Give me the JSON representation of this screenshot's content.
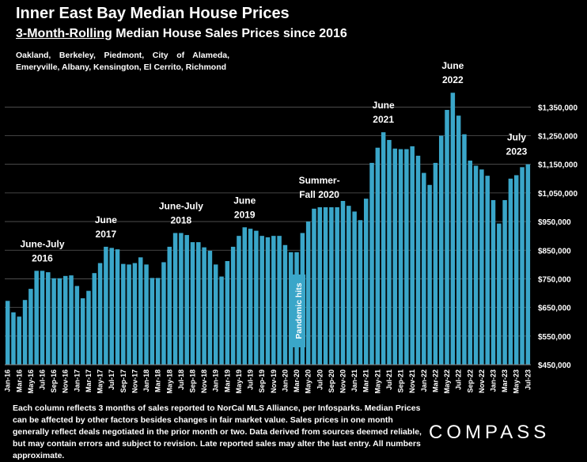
{
  "title": "Inner East Bay Median House Prices",
  "subtitle_underlined": "3-Month-Rolling",
  "subtitle_rest": " Median House Sales Prices since 2016",
  "region_line1": "Oakland, Berkeley, Piedmont, City of Alameda,",
  "region_line2": "Emeryville, Albany, Kensington, El Cerrito, Richmond",
  "footer_text": "Each column reflects 3 months of sales reported to NorCal MLS Alliance, per Infosparks. Median Prices can be affected by other factors besides changes in fair market value. Sales prices in one month generally reflect deals negotiated in the prior month or two. Data derived from sources deemed reliable, but may contain errors and subject to revision. Late reported sales may alter the last entry. All numbers approximate.",
  "logo": "COMPASS",
  "colors": {
    "bar": "#3aa6c9",
    "background": "#000000",
    "text": "#ffffff",
    "grid": "#ffffff"
  },
  "chart_data": {
    "type": "bar",
    "x": [
      "Jan-16",
      "Feb-16",
      "Mar-16",
      "Apr-16",
      "May-16",
      "Jun-16",
      "Jul-16",
      "Aug-16",
      "Sep-16",
      "Oct-16",
      "Nov-16",
      "Dec-16",
      "Jan-17",
      "Feb-17",
      "Mar-17",
      "Apr-17",
      "May-17",
      "Jun-17",
      "Jul-17",
      "Aug-17",
      "Sep-17",
      "Oct-17",
      "Nov-17",
      "Dec-17",
      "Jan-18",
      "Feb-18",
      "Mar-18",
      "Apr-18",
      "May-18",
      "Jun-18",
      "Jul-18",
      "Aug-18",
      "Sep-18",
      "Oct-18",
      "Nov-18",
      "Dec-18",
      "Jan-19",
      "Feb-19",
      "Mar-19",
      "Apr-19",
      "May-19",
      "Jun-19",
      "Jul-19",
      "Aug-19",
      "Sep-19",
      "Oct-19",
      "Nov-19",
      "Dec-19",
      "Jan-20",
      "Feb-20",
      "Mar-20",
      "Apr-20",
      "May-20",
      "Jun-20",
      "Jul-20",
      "Aug-20",
      "Sep-20",
      "Oct-20",
      "Nov-20",
      "Dec-20",
      "Jan-21",
      "Feb-21",
      "Mar-21",
      "Apr-21",
      "May-21",
      "Jun-21",
      "Jul-21",
      "Aug-21",
      "Sep-21",
      "Oct-21",
      "Nov-21",
      "Dec-21",
      "Jan-22",
      "Feb-22",
      "Mar-22",
      "Apr-22",
      "May-22",
      "Jun-22",
      "Jul-22",
      "Aug-22",
      "Sep-22",
      "Oct-22",
      "Nov-22",
      "Dec-22",
      "Jan-23",
      "Feb-23",
      "Mar-23",
      "Apr-23",
      "May-23",
      "Jun-23",
      "Jul-23"
    ],
    "x_tick_labels": [
      "Jan-16",
      "Mar-16",
      "May-16",
      "Jul-16",
      "Sep-16",
      "Nov-16",
      "Jan-17",
      "Mar-17",
      "May-17",
      "Jul-17",
      "Sep-17",
      "Nov-17",
      "Jan-18",
      "Mar-18",
      "May-18",
      "Jul-18",
      "Sep-18",
      "Nov-18",
      "Jan-19",
      "Mar-19",
      "May-19",
      "Jul-19",
      "Sep-19",
      "Nov-19",
      "Jan-20",
      "Mar-20",
      "May-20",
      "Jul-20",
      "Sep-20",
      "Nov-20",
      "Jan-21",
      "Mar-21",
      "May-21",
      "Jul-21",
      "Sep-21",
      "Nov-21",
      "Jan-22",
      "Mar-22",
      "May-22",
      "Jul-22",
      "Sep-22",
      "Nov-22",
      "Jan-23",
      "Mar-23",
      "May-23",
      "Jul-23"
    ],
    "values": [
      673000,
      633000,
      618000,
      676000,
      715000,
      778000,
      778000,
      773000,
      752000,
      752000,
      760000,
      762000,
      725000,
      682000,
      708000,
      770000,
      805000,
      862000,
      858000,
      853000,
      802000,
      800000,
      805000,
      825000,
      800000,
      753000,
      753000,
      808000,
      862000,
      910000,
      910000,
      903000,
      878000,
      878000,
      860000,
      848000,
      800000,
      758000,
      812000,
      862000,
      900000,
      930000,
      925000,
      918000,
      900000,
      895000,
      900000,
      900000,
      868000,
      843000,
      843000,
      910000,
      950000,
      995000,
      1000000,
      1000000,
      1000000,
      1000000,
      1022000,
      1005000,
      985000,
      955000,
      1030000,
      1155000,
      1208000,
      1262000,
      1235000,
      1205000,
      1203000,
      1203000,
      1213000,
      1180000,
      1120000,
      1078000,
      1155000,
      1250000,
      1340000,
      1400000,
      1320000,
      1255000,
      1163000,
      1145000,
      1132000,
      1110000,
      1025000,
      943000,
      1025000,
      1100000,
      1112000,
      1140000,
      1150000
    ],
    "y_ticks": [
      "$450,000",
      "$550,000",
      "$650,000",
      "$750,000",
      "$850,000",
      "$950,000",
      "$1,050,000",
      "$1,150,000",
      "$1,250,000",
      "$1,350,000"
    ],
    "y_tick_values": [
      450000,
      550000,
      650000,
      750000,
      850000,
      950000,
      1050000,
      1150000,
      1250000,
      1350000
    ],
    "ylim": [
      450000,
      1420000
    ],
    "annotations": [
      {
        "line1": "June-July",
        "line2": "2016",
        "at": "Jul-16"
      },
      {
        "line1": "June",
        "line2": "2017",
        "at": "Jun-17"
      },
      {
        "line1": "June-July",
        "line2": "2018",
        "at": "Jul-18"
      },
      {
        "line1": "June",
        "line2": "2019",
        "at": "Jun-19"
      },
      {
        "line1": "Summer-",
        "line2": "Fall 2020",
        "at": "Aug-20"
      },
      {
        "line1": "June",
        "line2": "2021",
        "at": "Jun-21"
      },
      {
        "line1": "June",
        "line2": "2022",
        "at": "Jun-22"
      },
      {
        "line1": "July",
        "line2": "2023",
        "at": "Jul-23"
      }
    ],
    "callout": {
      "text": "Pandemic hits",
      "at": "Mar-20"
    },
    "grid": true
  }
}
